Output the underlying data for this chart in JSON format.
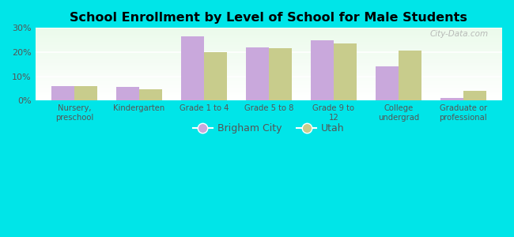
{
  "title": "School Enrollment by Level of School for Male Students",
  "categories": [
    "Nursery,\npreschool",
    "Kindergarten",
    "Grade 1 to 4",
    "Grade 5 to 8",
    "Grade 9 to\n12",
    "College\nundergrad",
    "Graduate or\nprofessional"
  ],
  "brigham_city": [
    6.0,
    5.5,
    26.5,
    22.0,
    25.0,
    14.0,
    1.0
  ],
  "utah": [
    6.0,
    4.5,
    20.0,
    21.5,
    23.5,
    20.5,
    4.0
  ],
  "brigham_color": "#c9a8dc",
  "utah_color": "#c8cc8c",
  "background_color": "#00e5e8",
  "ylim": [
    0,
    30
  ],
  "yticks": [
    0,
    10,
    20,
    30
  ],
  "ytick_labels": [
    "0%",
    "10%",
    "20%",
    "30%"
  ],
  "legend_labels": [
    "Brigham City",
    "Utah"
  ],
  "watermark": "City-Data.com",
  "bar_width": 0.35
}
